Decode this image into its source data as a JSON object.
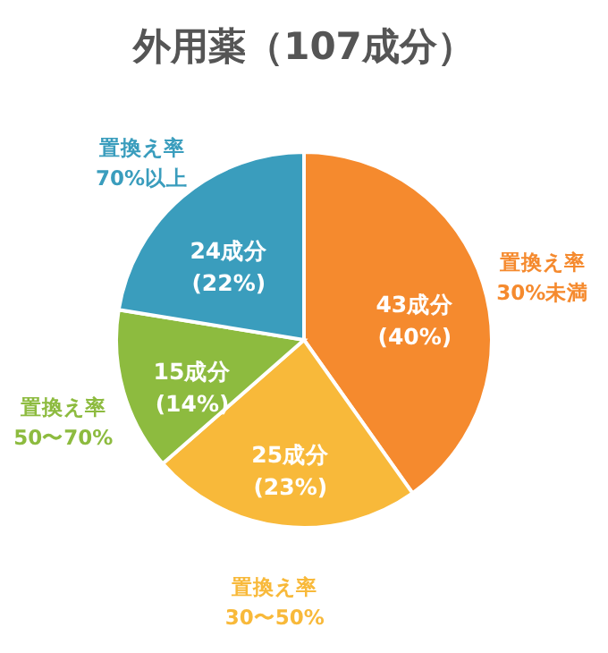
{
  "chart_data": {
    "type": "pie",
    "title": "外用薬（107成分）",
    "categories": [
      "置換え率\n30%未満",
      "置換え率\n30〜50%",
      "置換え率\n50〜70%",
      "置換え率\n70%以上"
    ],
    "values": [
      43,
      25,
      15,
      24
    ],
    "value_labels": [
      "43成分\n(40%)",
      "25成分\n(23%)",
      "15成分\n(14%)",
      "24成分\n(22%)"
    ],
    "colors": [
      "#f58a2e",
      "#f8b93a",
      "#8dbb3f",
      "#3a9dbd"
    ],
    "legend": false
  }
}
